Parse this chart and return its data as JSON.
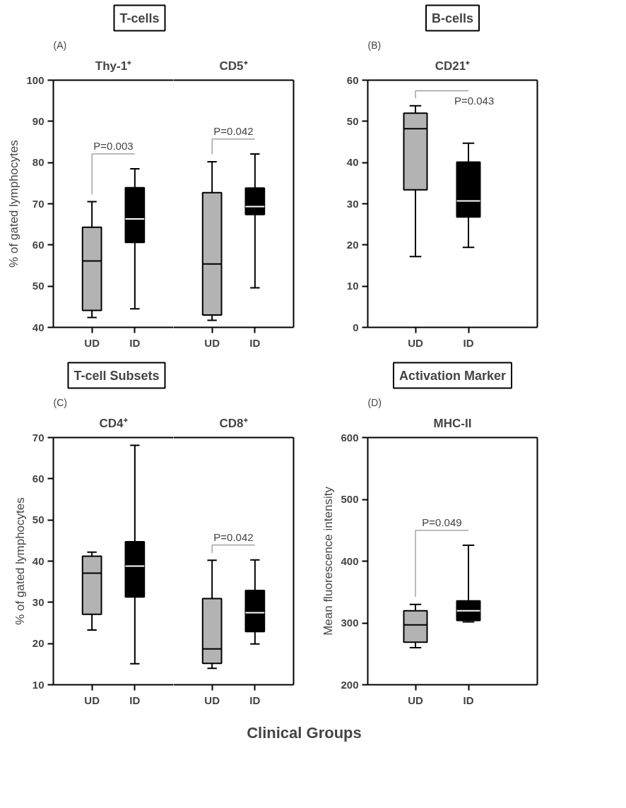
{
  "chart_data": [
    {
      "type": "box",
      "title": "T-cells",
      "subtitle": "Thy-1⁺",
      "ylabel": "% of gated lymphocytes",
      "categories": [
        "UD",
        "ID"
      ],
      "colors": [
        "#b3b3b3",
        "#000000"
      ],
      "boxes": [
        {
          "low": 42.4,
          "q1": 44.1,
          "median": 56.1,
          "q3": 64.3,
          "high": 70.5
        },
        {
          "low": 44.5,
          "q1": 60.6,
          "median": 66.3,
          "q3": 73.9,
          "high": 78.5
        }
      ],
      "annotations": [
        "(A)",
        "P=0.003"
      ],
      "ylim": [
        40,
        100
      ],
      "yticks": [
        40,
        50,
        60,
        70,
        80,
        90,
        100
      ],
      "grid": false
    },
    {
      "type": "box",
      "subtitle": "CD5⁺",
      "categories": [
        "UD",
        "ID"
      ],
      "colors": [
        "#b3b3b3",
        "#000000"
      ],
      "boxes": [
        {
          "low": 41.7,
          "q1": 43.0,
          "median": 55.4,
          "q3": 72.7,
          "high": 80.2
        },
        {
          "low": 49.6,
          "q1": 67.4,
          "median": 69.3,
          "q3": 73.8,
          "high": 82.1
        }
      ],
      "annotations": [
        "P=0.042"
      ],
      "ylim": [
        40,
        100
      ],
      "tick_labels": "x",
      "grid": false
    },
    {
      "type": "box",
      "title": "B-cells",
      "subtitle": "CD21⁺",
      "categories": [
        "UD",
        "ID"
      ],
      "colors": [
        "#b3b3b3",
        "#000000"
      ],
      "boxes": [
        {
          "low": 17.2,
          "q1": 33.4,
          "median": 48.2,
          "q3": 52.0,
          "high": 53.8
        },
        {
          "low": 19.4,
          "q1": 26.8,
          "median": 30.7,
          "q3": 40.1,
          "high": 44.7
        }
      ],
      "annotations": [
        "(B)",
        "P=0.043"
      ],
      "ylim": [
        0,
        60
      ],
      "yticks": [
        0,
        10,
        20,
        30,
        40,
        50,
        60
      ],
      "grid": false
    },
    {
      "type": "box",
      "title": "T-cell Subsets",
      "subtitle": "CD4⁺",
      "ylabel": "% of gated lymphocytes",
      "xlabel": "Clinical Groups",
      "categories": [
        "UD",
        "ID"
      ],
      "colors": [
        "#b3b3b3",
        "#000000"
      ],
      "boxes": [
        {
          "low": 23.3,
          "q1": 27.1,
          "median": 37.1,
          "q3": 41.2,
          "high": 42.2
        },
        {
          "low": 15.1,
          "q1": 31.3,
          "median": 38.8,
          "q3": 44.7,
          "high": 68.1
        }
      ],
      "annotations": [
        "(C)"
      ],
      "ylim": [
        10,
        70
      ],
      "yticks": [
        10,
        20,
        30,
        40,
        50,
        60,
        70
      ],
      "grid": false
    },
    {
      "type": "box",
      "subtitle": "CD8⁺",
      "categories": [
        "UD",
        "ID"
      ],
      "colors": [
        "#b3b3b3",
        "#000000"
      ],
      "boxes": [
        {
          "low": 14.0,
          "q1": 15.2,
          "median": 18.7,
          "q3": 30.9,
          "high": 40.2
        },
        {
          "low": 19.9,
          "q1": 22.9,
          "median": 27.5,
          "q3": 32.9,
          "high": 40.3
        }
      ],
      "annotations": [
        "P=0.042"
      ],
      "ylim": [
        10,
        70
      ],
      "tick_labels": "x",
      "grid": false
    },
    {
      "type": "box",
      "title": "Activation Marker",
      "subtitle": "MHC-II",
      "ylabel": "Mean fluorescence intensity",
      "categories": [
        "UD",
        "ID"
      ],
      "colors": [
        "#b3b3b3",
        "#000000"
      ],
      "boxes": [
        {
          "low": 260,
          "q1": 269,
          "median": 297,
          "q3": 319.6,
          "high": 330
        },
        {
          "low": 301.6,
          "q1": 304,
          "median": 319.6,
          "q3": 335.6,
          "high": 425.8
        }
      ],
      "annotations": [
        "(D)",
        "P=0.049"
      ],
      "ylim": [
        200,
        600
      ],
      "yticks": [
        200,
        300,
        400,
        500,
        600
      ],
      "grid": false
    }
  ]
}
